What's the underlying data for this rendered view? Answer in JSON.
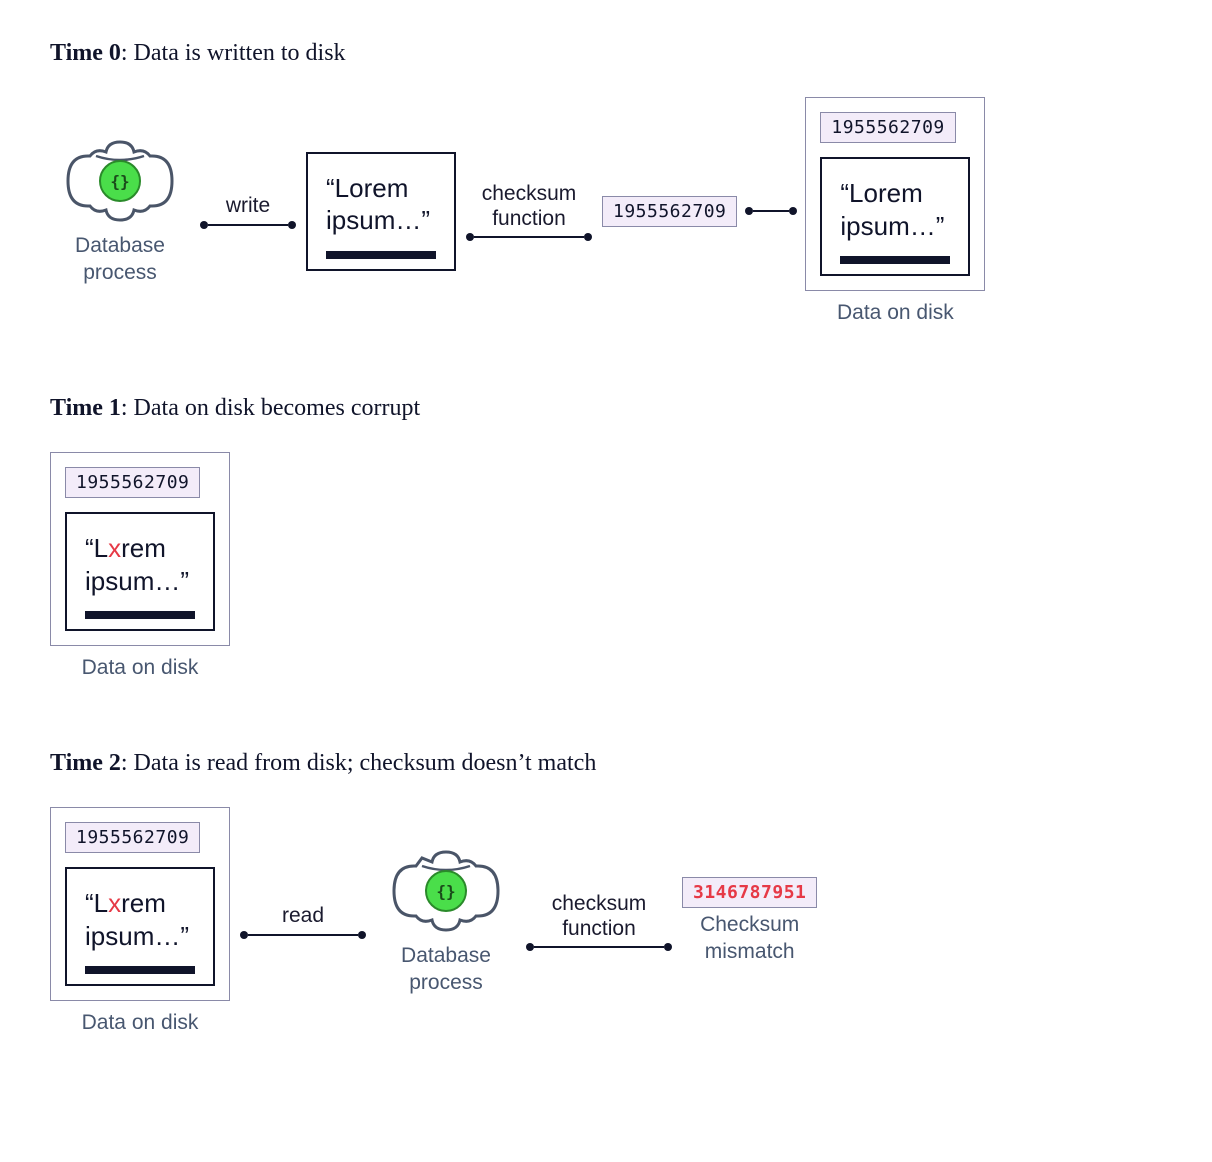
{
  "colors": {
    "text": "#10142a",
    "muted": "#485770",
    "checksum_bg": "#f3ecf9",
    "checksum_border": "#8a8aa8",
    "error": "#e63946",
    "db_green": "#4ade4a",
    "db_stroke": "#4a5568"
  },
  "time0": {
    "title_bold": "Time 0",
    "title_rest": ": Data is written to disk",
    "db_caption": "Database\nprocess",
    "arrow_write": "write",
    "data_quote": "“Lorem\nipsum…”",
    "arrow_checksum": "checksum\nfunction",
    "checksum_value": "1955562709",
    "disk_checksum": "1955562709",
    "disk_data": "“Lorem\nipsum…”",
    "disk_caption": "Data on disk"
  },
  "time1": {
    "title_bold": "Time 1",
    "title_rest": ": Data on disk becomes corrupt",
    "disk_checksum": "1955562709",
    "disk_data_pre": "“L",
    "disk_data_bad": "x",
    "disk_data_post": "rem\nipsum…”",
    "disk_caption": "Data on disk"
  },
  "time2": {
    "title_bold": "Time 2",
    "title_rest": ": Data is read from disk; checksum doesn’t match",
    "disk_checksum": "1955562709",
    "disk_data_pre": "“L",
    "disk_data_bad": "x",
    "disk_data_post": "rem\nipsum…”",
    "disk_caption": "Data on disk",
    "arrow_read": "read",
    "db_caption": "Database\nprocess",
    "arrow_checksum": "checksum\nfunction",
    "checksum_value": "3146787951",
    "checksum_caption": "Checksum\nmismatch"
  },
  "style": {
    "arrow_width_short": 80,
    "arrow_width_med": 110,
    "arrow_width_tiny": 36,
    "title_fontsize": 24,
    "body_fontsize": 21,
    "data_fontsize": 26,
    "checksum_fontsize": 18
  }
}
